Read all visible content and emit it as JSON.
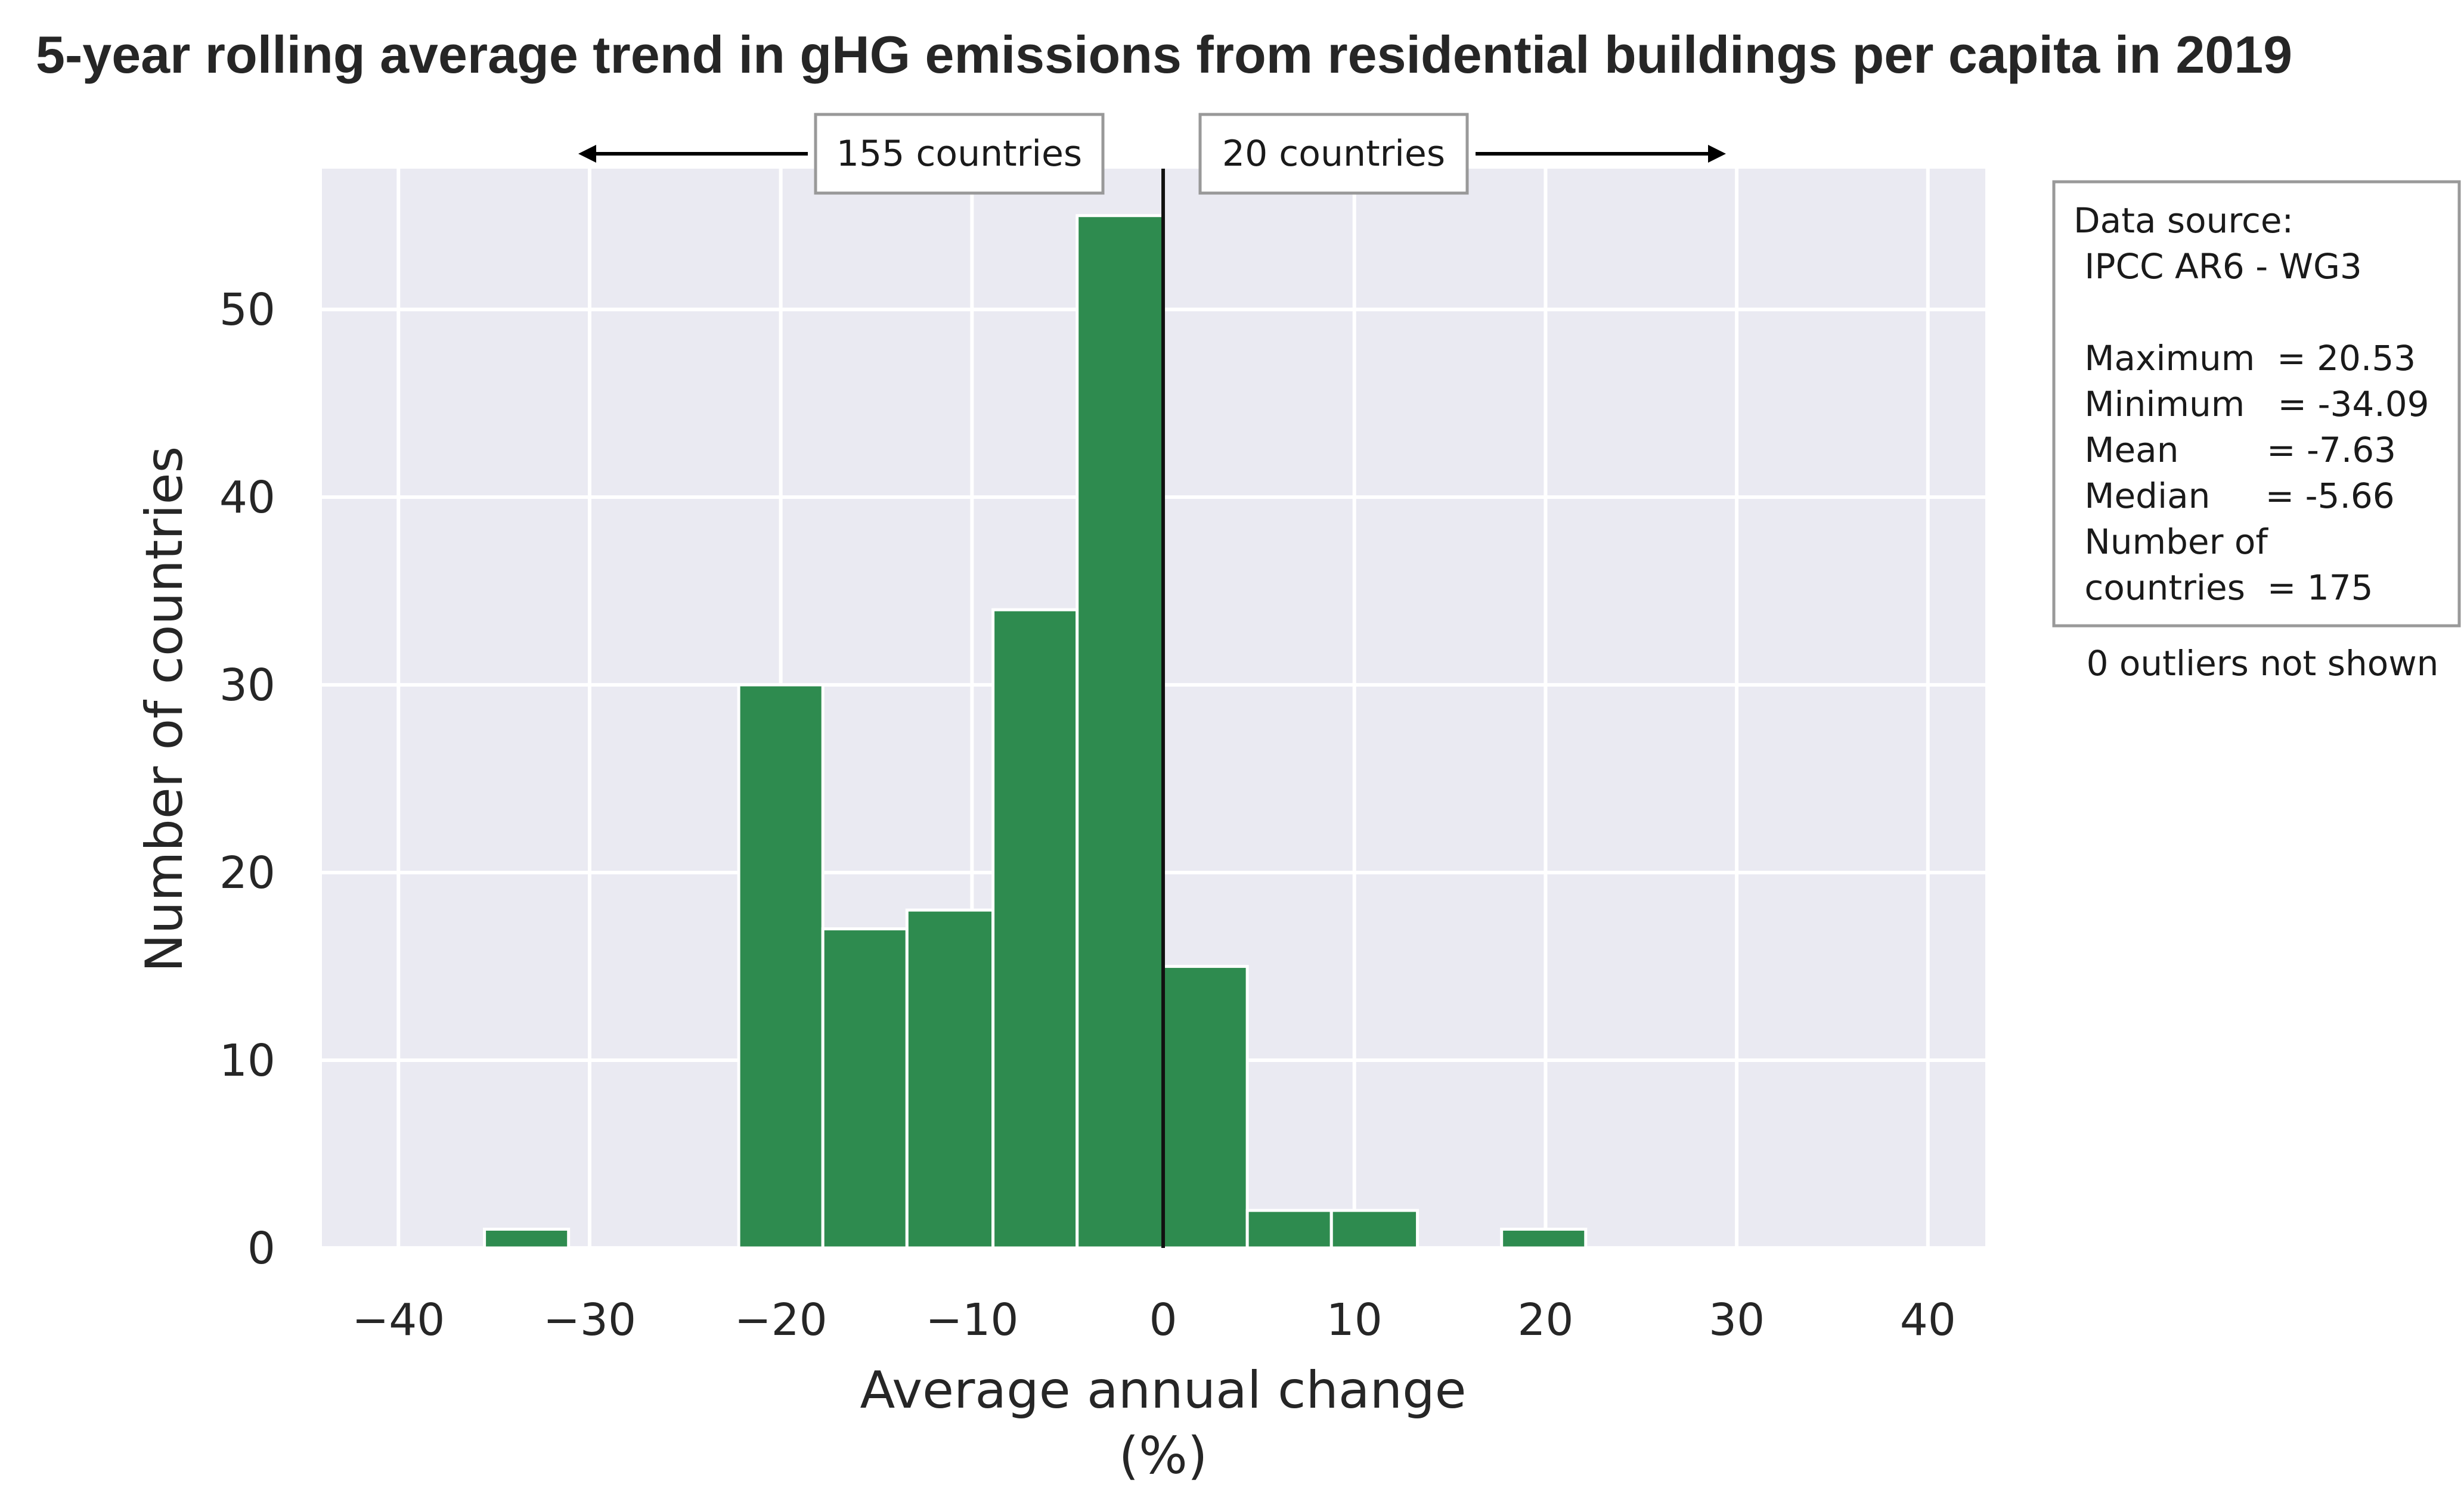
{
  "chart_data": {
    "type": "bar",
    "title": "5-year rolling average trend in gHG emissions from residential buildings per capita in 2019",
    "xlabel": "Average annual change\n(%)",
    "ylabel": "Number of countries",
    "xlim": [
      -44,
      43
    ],
    "ylim": [
      0,
      57.5
    ],
    "xticks": [
      -40,
      -30,
      -20,
      -10,
      0,
      10,
      20,
      30,
      40
    ],
    "yticks": [
      0,
      10,
      20,
      30,
      40,
      50
    ],
    "grid": true,
    "bin_edges": [
      -35.5,
      -31.1,
      -26.7,
      -22.2,
      -17.8,
      -13.4,
      -8.9,
      -4.5,
      0,
      4.4,
      8.8,
      13.3,
      17.7,
      22.1
    ],
    "values": [
      1,
      0,
      0,
      30,
      17,
      18,
      34,
      55,
      15,
      2,
      2,
      0,
      1
    ],
    "bar_color": "#2e8b4f",
    "reference_line_x": 0,
    "annotations": {
      "left_count": "155 countries",
      "right_count": "20 countries"
    },
    "info_box": {
      "lines": [
        "Data source:",
        " IPCC AR6 - WG3",
        "",
        " Maximum  = 20.53",
        " Minimum   = -34.09",
        " Mean        = -7.63",
        " Median     = -5.66",
        " Number of",
        " countries  = 175"
      ],
      "outliers_note": "0 outliers not shown"
    }
  }
}
